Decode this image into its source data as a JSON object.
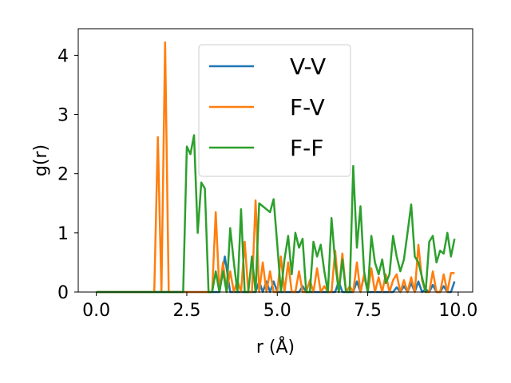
{
  "chart_data": {
    "type": "line",
    "xlabel": "r (Å)",
    "ylabel": "g(r)",
    "xlim": [
      -0.5,
      10.4
    ],
    "ylim": [
      0,
      4.45
    ],
    "xticks": [
      "0.0",
      "2.5",
      "5.0",
      "7.5",
      "10.0"
    ],
    "yticks": [
      "0",
      "1",
      "2",
      "3",
      "4"
    ],
    "grid": false,
    "legend_position": "top-center",
    "series": [
      {
        "name": "V-V",
        "color": "#1f77b4",
        "x": [
          0.0,
          3.4,
          3.55,
          3.7,
          4.4,
          4.5,
          4.6,
          4.7,
          4.8,
          4.9,
          5.0,
          5.6,
          5.7,
          5.8,
          6.6,
          6.7,
          6.8,
          7.1,
          7.2,
          7.3,
          7.4,
          7.5,
          8.2,
          8.3,
          8.4,
          8.5,
          8.6,
          8.7,
          8.8,
          8.9,
          9.0,
          9.1,
          9.2,
          9.3,
          9.4,
          9.5,
          9.6,
          9.7,
          9.8,
          9.9
        ],
        "values": [
          0.0,
          0.0,
          0.6,
          0.0,
          0.0,
          0.18,
          0.0,
          0.18,
          0.0,
          0.18,
          0.0,
          0.0,
          0.1,
          0.0,
          0.0,
          0.18,
          0.0,
          0.0,
          0.18,
          0.0,
          0.28,
          0.0,
          0.0,
          0.08,
          0.0,
          0.1,
          0.0,
          0.15,
          0.0,
          0.18,
          0.0,
          0.05,
          0.0,
          0.12,
          0.0,
          0.0,
          0.1,
          0.0,
          0.0,
          0.18
        ]
      },
      {
        "name": "F-V",
        "color": "#ff7f0e",
        "x": [
          0.0,
          1.6,
          1.7,
          1.8,
          1.9,
          2.0,
          3.1,
          3.2,
          3.3,
          3.4,
          3.5,
          3.6,
          3.7,
          3.8,
          3.9,
          4.0,
          4.1,
          4.2,
          4.3,
          4.4,
          4.5,
          4.6,
          4.7,
          4.8,
          4.9,
          5.0,
          5.1,
          5.2,
          5.3,
          5.4,
          5.5,
          5.6,
          5.7,
          5.8,
          5.9,
          6.0,
          6.1,
          6.2,
          6.3,
          6.4,
          6.5,
          6.6,
          6.7,
          6.8,
          6.9,
          7.0,
          7.1,
          7.2,
          7.3,
          7.4,
          7.5,
          7.6,
          7.7,
          7.8,
          7.9,
          8.0,
          8.1,
          8.2,
          8.3,
          8.4,
          8.5,
          8.6,
          8.7,
          8.8,
          8.9,
          9.0,
          9.1,
          9.2,
          9.3,
          9.4,
          9.5,
          9.6,
          9.7,
          9.8,
          9.9
        ],
        "values": [
          0.0,
          0.0,
          2.62,
          0.0,
          4.22,
          0.0,
          0.0,
          0.0,
          1.35,
          0.0,
          0.5,
          0.0,
          0.35,
          0.0,
          0.2,
          0.0,
          0.85,
          0.0,
          0.0,
          1.55,
          0.0,
          0.5,
          0.0,
          0.35,
          0.0,
          0.0,
          0.6,
          0.0,
          0.5,
          0.0,
          0.0,
          0.35,
          0.0,
          0.0,
          0.2,
          0.0,
          0.4,
          0.0,
          0.1,
          0.0,
          0.0,
          0.7,
          0.0,
          0.65,
          0.0,
          0.1,
          0.0,
          0.5,
          0.0,
          0.3,
          0.0,
          0.4,
          0.0,
          0.25,
          0.0,
          0.3,
          0.0,
          0.2,
          0.3,
          0.0,
          0.2,
          0.0,
          0.25,
          0.0,
          0.8,
          0.2,
          0.0,
          0.0,
          0.35,
          0.0,
          0.0,
          0.3,
          0.0,
          0.32,
          0.32
        ]
      },
      {
        "name": "F-F",
        "color": "#2ca02c",
        "x": [
          0.0,
          2.4,
          2.5,
          2.6,
          2.7,
          2.8,
          2.9,
          3.0,
          3.1,
          3.2,
          3.3,
          3.4,
          3.5,
          3.6,
          3.7,
          3.8,
          3.9,
          4.0,
          4.1,
          4.2,
          4.3,
          4.4,
          4.5,
          4.6,
          4.7,
          4.8,
          4.9,
          5.0,
          5.1,
          5.2,
          5.3,
          5.4,
          5.5,
          5.6,
          5.7,
          5.8,
          5.9,
          6.0,
          6.1,
          6.2,
          6.3,
          6.4,
          6.5,
          6.6,
          6.7,
          6.8,
          6.9,
          7.0,
          7.1,
          7.2,
          7.3,
          7.4,
          7.5,
          7.6,
          7.7,
          7.8,
          7.9,
          8.0,
          8.1,
          8.2,
          8.3,
          8.4,
          8.5,
          8.6,
          8.7,
          8.8,
          8.9,
          9.0,
          9.1,
          9.2,
          9.3,
          9.4,
          9.5,
          9.6,
          9.7,
          9.8,
          9.9
        ],
        "values": [
          0.0,
          0.0,
          2.46,
          2.33,
          2.65,
          1.0,
          1.85,
          1.75,
          0.0,
          0.0,
          0.35,
          0.0,
          0.35,
          0.0,
          1.08,
          0.5,
          0.0,
          1.4,
          0.0,
          0.0,
          0.6,
          0.0,
          1.5,
          1.45,
          1.4,
          1.35,
          1.57,
          0.8,
          0.0,
          0.55,
          0.95,
          0.3,
          1.0,
          0.75,
          0.9,
          0.0,
          0.0,
          0.85,
          0.6,
          0.8,
          0.35,
          0.0,
          1.25,
          0.5,
          0.0,
          0.55,
          0.0,
          0.0,
          2.13,
          0.75,
          1.45,
          0.35,
          0.0,
          0.95,
          0.5,
          0.3,
          0.55,
          0.15,
          0.3,
          0.95,
          0.6,
          0.35,
          0.55,
          1.0,
          1.48,
          0.6,
          0.5,
          0.25,
          0.0,
          0.85,
          0.95,
          0.5,
          0.7,
          0.65,
          1.0,
          0.6,
          0.9
        ]
      }
    ]
  }
}
